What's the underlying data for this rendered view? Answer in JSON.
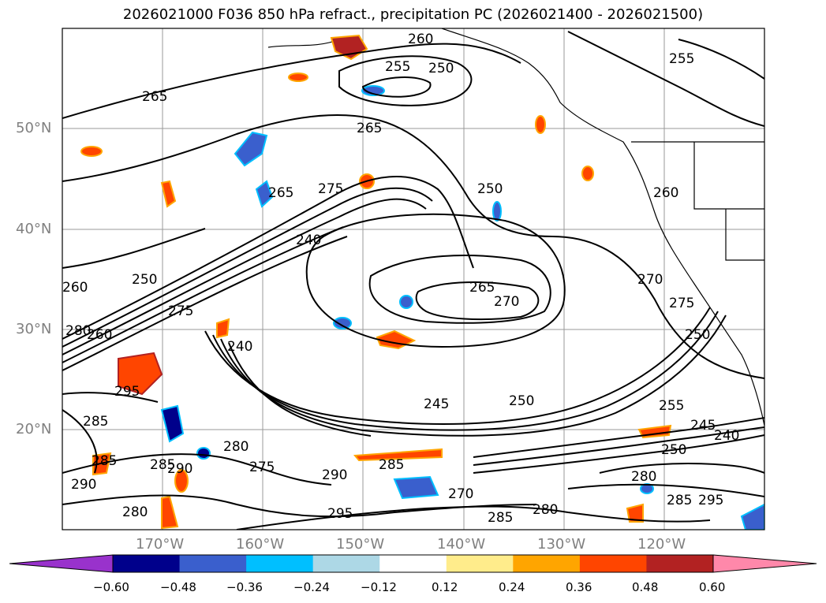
{
  "title": "2026021000 F036 850 hPa refract., precipitation PC (2026021400 - 2026021500)",
  "axes": {
    "lat_labels": [
      "50°N",
      "40°N",
      "30°N",
      "20°N"
    ],
    "lon_labels": [
      "170°W",
      "160°W",
      "150°W",
      "140°W",
      "130°W",
      "120°W"
    ]
  },
  "contour_labels": [
    "260",
    "255",
    "250",
    "265",
    "265",
    "275",
    "260",
    "250",
    "265",
    "240",
    "255",
    "250",
    "260",
    "270",
    "270",
    "240",
    "250",
    "265",
    "275",
    "275",
    "260",
    "280",
    "295",
    "285",
    "245",
    "250",
    "255",
    "245",
    "240",
    "250",
    "280",
    "285",
    "290",
    "295",
    "270",
    "285",
    "280",
    "290",
    "275",
    "285",
    "285",
    "290",
    "280",
    "280",
    "295",
    "285"
  ],
  "colorbar": {
    "tick_labels": [
      "−0.60",
      "−0.48",
      "−0.36",
      "−0.24",
      "−0.12",
      "0.12",
      "0.24",
      "0.36",
      "0.48",
      "0.60"
    ],
    "colors": [
      "#9932cc",
      "#00008b",
      "#3a5fcd",
      "#00bfff",
      "#add8e6",
      "#ffffff",
      "#ffec8b",
      "#ffa500",
      "#ff4500",
      "#b22222",
      "#ff88aa"
    ]
  }
}
